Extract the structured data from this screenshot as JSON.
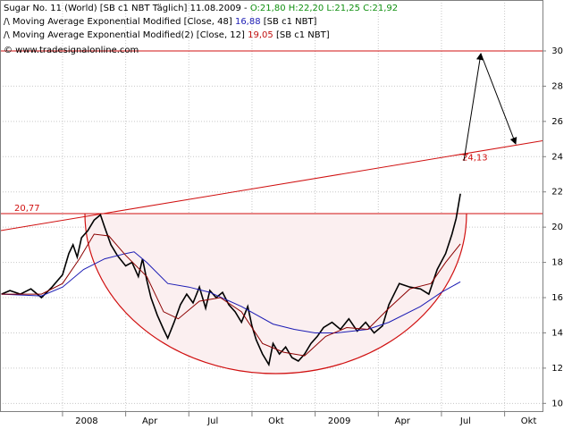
{
  "chart_data": {
    "type": "line",
    "header": "Sugar No. 11 (World) [SB c1 NBT  Täglich] 11.08.2009 -",
    "ohlc_label": "O:21,80 H:22,20 L:21,25 C:21,92",
    "source": "© www.tradesignalonline.com",
    "series": [
      {
        "name": "Sugar No. 11 (World)",
        "color": "#000000",
        "x": [
          -2.9,
          -2.5,
          -2,
          -1.5,
          -1,
          -0.5,
          0,
          0.3,
          0.5,
          0.7,
          0.9,
          1.2,
          1.5,
          1.8,
          2.0,
          2.3,
          2.6,
          3.0,
          3.3,
          3.6,
          3.8,
          4.0,
          4.2,
          4.5,
          4.8,
          5.0,
          5.3,
          5.6,
          5.9,
          6.2,
          6.5,
          6.8,
          7.0,
          7.3,
          7.6,
          7.9,
          8.2,
          8.5,
          8.8,
          9.0,
          9.2,
          9.5,
          9.8,
          10.0,
          10.3,
          10.6,
          10.9,
          11.2,
          11.5,
          11.8,
          12.1,
          12.4,
          12.8,
          13.2,
          13.6,
          14.0,
          14.4,
          14.8,
          15.2,
          15.5,
          16.0,
          16.5,
          17.0,
          17.4,
          17.8,
          18.2,
          18.5,
          18.7,
          18.9
        ],
        "values": [
          16.2,
          16.4,
          16.2,
          16.5,
          16.0,
          16.6,
          17.3,
          18.5,
          19.0,
          18.3,
          19.4,
          19.8,
          20.4,
          20.7,
          20.0,
          19.0,
          18.4,
          17.8,
          18.0,
          17.2,
          18.2,
          17.0,
          16.0,
          15.0,
          14.2,
          13.7,
          14.6,
          15.6,
          16.2,
          15.7,
          16.6,
          15.4,
          16.4,
          16.0,
          16.3,
          15.6,
          15.2,
          14.6,
          15.5,
          14.4,
          13.6,
          12.8,
          12.2,
          13.4,
          12.8,
          13.2,
          12.6,
          12.4,
          12.8,
          13.4,
          13.8,
          14.3,
          14.6,
          14.2,
          14.8,
          14.1,
          14.6,
          14.0,
          14.4,
          15.6,
          16.8,
          16.6,
          16.5,
          16.2,
          17.6,
          18.5,
          19.6,
          20.5,
          21.9
        ]
      },
      {
        "name": "Moving Average Exponential Modified [Close, 48]",
        "color": "#1c1cb4",
        "value_label": "16,88",
        "tag": "[SB c1 NBT]",
        "x": [
          -2.9,
          -1,
          0,
          1,
          2,
          3,
          3.4,
          4,
          5,
          6,
          7,
          8.5,
          10,
          11,
          12,
          13,
          14.5,
          15.5,
          17,
          18,
          18.9
        ],
        "values": [
          16.2,
          16.1,
          16.6,
          17.6,
          18.2,
          18.5,
          18.6,
          18.0,
          16.8,
          16.6,
          16.3,
          15.5,
          14.5,
          14.2,
          14.0,
          14.0,
          14.2,
          14.6,
          15.5,
          16.3,
          16.9
        ]
      },
      {
        "name": "Moving Average Exponential Modified(2) [Close, 12]",
        "color": "#8b0000",
        "value_label": "19,05",
        "tag": "[SB c1 NBT]",
        "x": [
          -2.9,
          -1,
          0,
          0.8,
          1.5,
          2.2,
          3,
          4,
          4.8,
          5.5,
          6.5,
          7.5,
          8.5,
          9.5,
          10.5,
          11.5,
          12.5,
          13.5,
          14.5,
          15.5,
          16.5,
          17.5,
          18.2,
          18.9
        ],
        "values": [
          16.2,
          16.2,
          16.8,
          18.2,
          19.6,
          19.5,
          18.4,
          17.2,
          15.2,
          14.8,
          15.8,
          16.0,
          15.2,
          13.4,
          12.9,
          12.7,
          13.8,
          14.3,
          14.2,
          15.4,
          16.5,
          16.8,
          18.0,
          19.05
        ]
      }
    ],
    "levels": [
      {
        "value": 20.77,
        "label": "20,77"
      },
      {
        "value": 30
      }
    ],
    "trendline": {
      "x": [
        -2.97,
        22.8
      ],
      "y": [
        19.8,
        24.9
      ]
    },
    "target": {
      "value": 24.13,
      "label": "24,13"
    },
    "xlim": [
      -2.97,
      22.8
    ],
    "xticks": [
      {
        "value": 0,
        "label": "2008"
      },
      {
        "value": 3,
        "label": "Apr"
      },
      {
        "value": 6,
        "label": "Jul"
      },
      {
        "value": 9,
        "label": "Okt"
      },
      {
        "value": 12,
        "label": "2009"
      },
      {
        "value": 15,
        "label": "Apr"
      },
      {
        "value": 18,
        "label": "Jul"
      },
      {
        "value": 21,
        "label": "Okt"
      }
    ],
    "ylim": [
      9.56,
      32.89
    ],
    "yticks": [
      10,
      12,
      14,
      16,
      18,
      20,
      22,
      24,
      26,
      28,
      30
    ],
    "grid": true
  }
}
